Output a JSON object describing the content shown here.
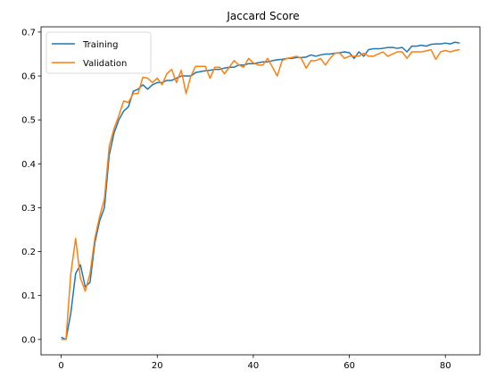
{
  "chart_data": {
    "type": "line",
    "title": "Jaccard Score",
    "xlabel": "",
    "ylabel": "",
    "xlim": [
      -4.2,
      87.2
    ],
    "ylim": [
      -0.035,
      0.712
    ],
    "xticks": [
      0,
      20,
      40,
      60,
      80
    ],
    "yticks": [
      0.0,
      0.1,
      0.2,
      0.3,
      0.4,
      0.5,
      0.6,
      0.7
    ],
    "ytick_labels": [
      "0.0",
      "0.1",
      "0.2",
      "0.3",
      "0.4",
      "0.5",
      "0.6",
      "0.7"
    ],
    "grid": false,
    "legend_position": "top-left",
    "series": [
      {
        "name": "Training",
        "color": "#1f77b4",
        "x": [
          0,
          1,
          2,
          3,
          4,
          5,
          6,
          7,
          8,
          9,
          10,
          11,
          12,
          13,
          14,
          15,
          16,
          17,
          18,
          19,
          20,
          21,
          22,
          23,
          24,
          25,
          26,
          27,
          28,
          29,
          30,
          31,
          32,
          33,
          34,
          35,
          36,
          37,
          38,
          39,
          40,
          41,
          42,
          43,
          44,
          45,
          46,
          47,
          48,
          49,
          50,
          51,
          52,
          53,
          54,
          55,
          56,
          57,
          58,
          59,
          60,
          61,
          62,
          63,
          64,
          65,
          66,
          67,
          68,
          69,
          70,
          71,
          72,
          73,
          74,
          75,
          76,
          77,
          78,
          79,
          80,
          81,
          82,
          83
        ],
        "values": [
          0.005,
          0.0,
          0.06,
          0.15,
          0.17,
          0.12,
          0.13,
          0.22,
          0.27,
          0.3,
          0.42,
          0.47,
          0.5,
          0.52,
          0.53,
          0.565,
          0.57,
          0.58,
          0.57,
          0.58,
          0.585,
          0.585,
          0.59,
          0.59,
          0.595,
          0.6,
          0.6,
          0.6,
          0.608,
          0.61,
          0.612,
          0.613,
          0.615,
          0.615,
          0.618,
          0.62,
          0.62,
          0.625,
          0.625,
          0.628,
          0.628,
          0.63,
          0.632,
          0.632,
          0.635,
          0.637,
          0.638,
          0.64,
          0.64,
          0.642,
          0.642,
          0.643,
          0.648,
          0.645,
          0.648,
          0.65,
          0.65,
          0.652,
          0.653,
          0.655,
          0.653,
          0.64,
          0.655,
          0.645,
          0.66,
          0.662,
          0.662,
          0.663,
          0.665,
          0.665,
          0.663,
          0.665,
          0.655,
          0.668,
          0.668,
          0.67,
          0.668,
          0.672,
          0.673,
          0.673,
          0.675,
          0.673,
          0.677,
          0.675
        ]
      },
      {
        "name": "Validation",
        "color": "#ff7f0e",
        "x": [
          0,
          1,
          2,
          3,
          4,
          5,
          6,
          7,
          8,
          9,
          10,
          11,
          12,
          13,
          14,
          15,
          16,
          17,
          18,
          19,
          20,
          21,
          22,
          23,
          24,
          25,
          26,
          27,
          28,
          29,
          30,
          31,
          32,
          33,
          34,
          35,
          36,
          37,
          38,
          39,
          40,
          41,
          42,
          43,
          44,
          45,
          46,
          47,
          48,
          49,
          50,
          51,
          52,
          53,
          54,
          55,
          56,
          57,
          58,
          59,
          60,
          61,
          62,
          63,
          64,
          65,
          66,
          67,
          68,
          69,
          70,
          71,
          72,
          73,
          74,
          75,
          76,
          77,
          78,
          79,
          80,
          81,
          82,
          83
        ],
        "values": [
          0.0,
          0.0,
          0.15,
          0.23,
          0.14,
          0.11,
          0.15,
          0.23,
          0.28,
          0.32,
          0.44,
          0.48,
          0.51,
          0.543,
          0.54,
          0.56,
          0.56,
          0.597,
          0.595,
          0.585,
          0.595,
          0.58,
          0.605,
          0.615,
          0.585,
          0.613,
          0.56,
          0.6,
          0.622,
          0.622,
          0.622,
          0.595,
          0.62,
          0.62,
          0.605,
          0.62,
          0.635,
          0.625,
          0.62,
          0.64,
          0.63,
          0.625,
          0.625,
          0.64,
          0.62,
          0.6,
          0.635,
          0.64,
          0.642,
          0.645,
          0.64,
          0.618,
          0.635,
          0.635,
          0.64,
          0.625,
          0.64,
          0.652,
          0.652,
          0.64,
          0.645,
          0.645,
          0.645,
          0.652,
          0.645,
          0.645,
          0.65,
          0.655,
          0.645,
          0.65,
          0.655,
          0.655,
          0.64,
          0.655,
          0.655,
          0.655,
          0.657,
          0.66,
          0.638,
          0.655,
          0.658,
          0.655,
          0.658,
          0.66
        ]
      }
    ]
  }
}
